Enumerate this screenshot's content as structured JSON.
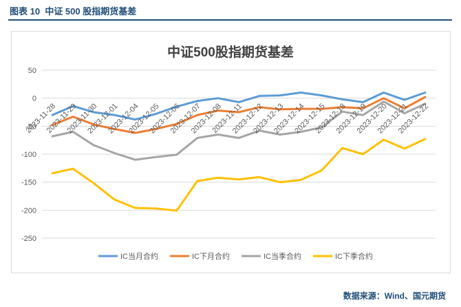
{
  "caption": {
    "figure_label": "图表 10",
    "figure_title": "中证 500 股指期货基差"
  },
  "source_note": "数据来源：Wind、国元期货",
  "colors": {
    "caption": "#1f4e79",
    "gridline": "#d9d9d9",
    "axis_text": "#595959",
    "series": [
      "#5b9bd5",
      "#ed7d31",
      "#a5a5a5",
      "#ffc000"
    ]
  },
  "chart_data": {
    "type": "line",
    "title": "中证500股指期货基差",
    "xlabel": "",
    "ylabel": "",
    "ylim": [
      -250,
      50
    ],
    "yticks": [
      50,
      0,
      -50,
      -100,
      -150,
      -200,
      -250
    ],
    "grid": true,
    "legend_position": "bottom",
    "categories": [
      "2023-11-28",
      "2023-11-29",
      "2023-11-30",
      "2023-12-01",
      "2023-12-04",
      "2023-12-05",
      "2023-12-06",
      "2023-12-07",
      "2023-12-08",
      "2023-12-11",
      "2023-12-12",
      "2023-12-13",
      "2023-12-14",
      "2023-12-15",
      "2023-12-18",
      "2023-12-19",
      "2023-12-20",
      "2023-12-21",
      "2023-12-22"
    ],
    "series": [
      {
        "name": "IC当月合约",
        "values": [
          -30,
          -14,
          -25,
          -30,
          -38,
          -28,
          -15,
          -5,
          0,
          -7,
          4,
          5,
          10,
          5,
          -2,
          -7,
          10,
          -3,
          10
        ]
      },
      {
        "name": "IC下月合约",
        "values": [
          -48,
          -33,
          -47,
          -55,
          -62,
          -55,
          -46,
          -30,
          -22,
          -25,
          -16,
          -20,
          -19,
          -19,
          -16,
          -18,
          0,
          -18,
          2
        ]
      },
      {
        "name": "IC当季合约",
        "values": [
          -68,
          -60,
          -84,
          -98,
          -110,
          -105,
          -101,
          -71,
          -65,
          -71,
          -58,
          -65,
          -60,
          -52,
          -24,
          -30,
          -6,
          -27,
          -10
        ]
      },
      {
        "name": "IC下季合约",
        "values": [
          -134,
          -126,
          -152,
          -181,
          -196,
          -197,
          -201,
          -148,
          -142,
          -145,
          -141,
          -150,
          -146,
          -129,
          -89,
          -100,
          -74,
          -90,
          -73
        ]
      }
    ]
  }
}
